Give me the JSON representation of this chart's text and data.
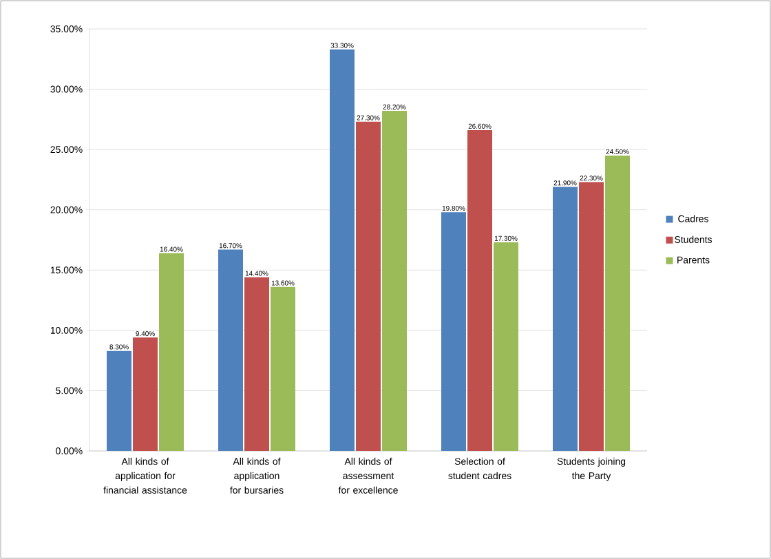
{
  "chart_data": {
    "type": "bar",
    "categories": [
      "All kinds of application for financial assistance",
      "All kinds of application for bursaries",
      "All kinds of assessment for excellence",
      "Selection of student cadres",
      "Students joining the Party"
    ],
    "series": [
      {
        "name": "Cadres",
        "color": "#4f81bd",
        "values": [
          8.3,
          16.7,
          33.3,
          19.8,
          21.9
        ],
        "value_labels": [
          "8.30%",
          "16.70%",
          "33.30%",
          "19.80%",
          "21.90%"
        ]
      },
      {
        "name": "Students",
        "color": "#c0504d",
        "values": [
          9.4,
          14.4,
          27.3,
          26.6,
          22.3
        ],
        "value_labels": [
          "9.40%",
          "14.40%",
          "27.30%",
          "26.60%",
          "22.30%"
        ]
      },
      {
        "name": "Parents",
        "color": "#9bbb59",
        "values": [
          16.4,
          13.6,
          28.2,
          17.3,
          24.5
        ],
        "value_labels": [
          "16.40%",
          "13.60%",
          "28.20%",
          "17.30%",
          "24.50%"
        ]
      }
    ],
    "ylim": [
      0,
      35
    ],
    "yticks": [
      {
        "value": 0,
        "label": "0.00%"
      },
      {
        "value": 5,
        "label": "5.00%"
      },
      {
        "value": 10,
        "label": "10.00%"
      },
      {
        "value": 15,
        "label": "15.00%"
      },
      {
        "value": 20,
        "label": "20.00%"
      },
      {
        "value": 25,
        "label": "25.00%"
      },
      {
        "value": 30,
        "label": "30.00%"
      },
      {
        "value": 35,
        "label": "35.00%"
      }
    ],
    "grid": "y",
    "legend": "right"
  }
}
